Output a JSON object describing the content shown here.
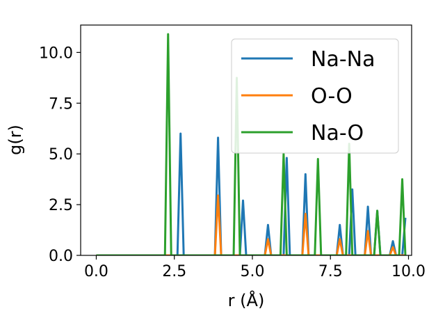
{
  "chart_data": {
    "type": "line",
    "title": "",
    "xlabel": "r (Å)",
    "ylabel": "g(r)",
    "xlim": [
      -0.5,
      10.1
    ],
    "ylim": [
      0,
      11.35
    ],
    "xticks": [
      0.0,
      2.5,
      5.0,
      7.5,
      10.0
    ],
    "xtick_labels": [
      "0.0",
      "2.5",
      "5.0",
      "7.5",
      "10.0"
    ],
    "yticks": [
      0.0,
      2.5,
      5.0,
      7.5,
      10.0
    ],
    "ytick_labels": [
      "0.0",
      "2.5",
      "5.0",
      "7.5",
      "10.0"
    ],
    "grid": false,
    "legend_position": "top-right",
    "series": [
      {
        "name": "Na-Na",
        "color": "#1f77b4",
        "x": [
          0.0,
          2.6,
          2.7,
          2.8,
          3.8,
          3.9,
          4.0,
          4.6,
          4.7,
          4.8,
          5.4,
          5.5,
          5.6,
          6.0,
          6.1,
          6.2,
          6.6,
          6.7,
          6.8,
          7.7,
          7.8,
          7.9,
          8.1,
          8.2,
          8.3,
          8.6,
          8.7,
          8.8,
          8.9,
          9.0,
          9.1,
          9.4,
          9.5,
          9.6,
          9.8,
          9.9
        ],
        "y": [
          0.0,
          0.0,
          6.0,
          0.0,
          0.0,
          5.8,
          0.0,
          0.0,
          2.7,
          0.0,
          0.0,
          1.5,
          0.0,
          0.0,
          4.8,
          0.0,
          0.0,
          4.0,
          0.0,
          0.0,
          1.5,
          0.0,
          0.0,
          3.25,
          0.0,
          0.0,
          2.4,
          0.0,
          0.0,
          2.2,
          0.0,
          0.0,
          0.7,
          0.0,
          0.0,
          1.85
        ]
      },
      {
        "name": "O-O",
        "color": "#ff7f0e",
        "x": [
          0.0,
          3.8,
          3.9,
          4.0,
          5.4,
          5.5,
          5.6,
          6.6,
          6.7,
          6.8,
          7.7,
          7.8,
          7.9,
          8.6,
          8.7,
          8.8,
          9.4,
          9.5,
          9.6,
          9.9
        ],
        "y": [
          0.0,
          0.0,
          2.95,
          0.0,
          0.0,
          0.8,
          0.0,
          0.0,
          2.05,
          0.0,
          0.0,
          0.8,
          0.0,
          0.0,
          1.2,
          0.0,
          0.0,
          0.4,
          0.0,
          0.0
        ]
      },
      {
        "name": "Na-O",
        "color": "#2ca02c",
        "x": [
          0.0,
          2.2,
          2.3,
          2.4,
          4.4,
          4.5,
          4.6,
          5.9,
          6.0,
          6.1,
          7.0,
          7.1,
          7.2,
          8.0,
          8.1,
          8.2,
          8.9,
          9.0,
          9.1,
          9.7,
          9.8,
          9.9
        ],
        "y": [
          0.0,
          0.0,
          10.9,
          0.0,
          0.0,
          8.75,
          0.0,
          0.0,
          5.0,
          0.0,
          0.0,
          4.75,
          0.0,
          0.0,
          5.5,
          0.0,
          0.0,
          2.2,
          0.0,
          0.0,
          3.75,
          0.0
        ]
      }
    ]
  }
}
